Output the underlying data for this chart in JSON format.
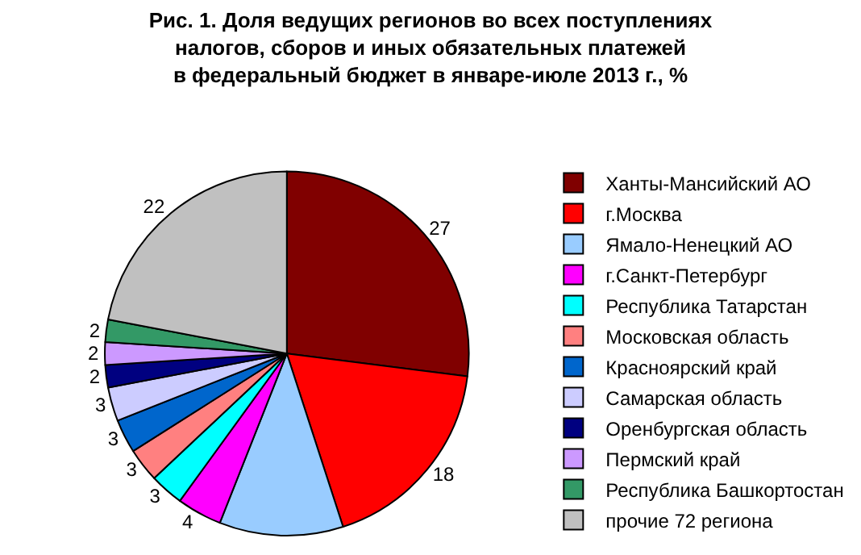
{
  "chart_data": {
    "type": "pie",
    "title": "Рис. 1. Доля ведущих регионов во всех поступлениях\nналогов, сборов и иных обязательных платежей\nв федеральный бюджет в январе-июле 2013 г., %",
    "categories": [
      "Ханты-Мансийский АО",
      "г.Москва",
      "Ямало-Ненецкий АО",
      "г.Санкт-Петербург",
      "Республика Татарстан",
      "Московская область",
      "Красноярский край",
      "Самарская область",
      "Оренбургская область",
      "Пермский край",
      "Республика Башкортостан",
      "прочие 72 региона"
    ],
    "values": [
      27,
      18,
      11,
      4,
      3,
      3,
      3,
      3,
      2,
      2,
      2,
      22
    ],
    "value_labels": [
      "27",
      "18",
      null,
      "4",
      "3",
      "3",
      "3",
      "3",
      "2",
      "2",
      "2",
      "22"
    ],
    "colors": [
      "#800000",
      "#ff0000",
      "#99ccff",
      "#ff00ff",
      "#00ffff",
      "#ff8080",
      "#0066cc",
      "#ccccff",
      "#000080",
      "#cc99ff",
      "#339966",
      "#c0c0c0"
    ],
    "legend": "right"
  }
}
